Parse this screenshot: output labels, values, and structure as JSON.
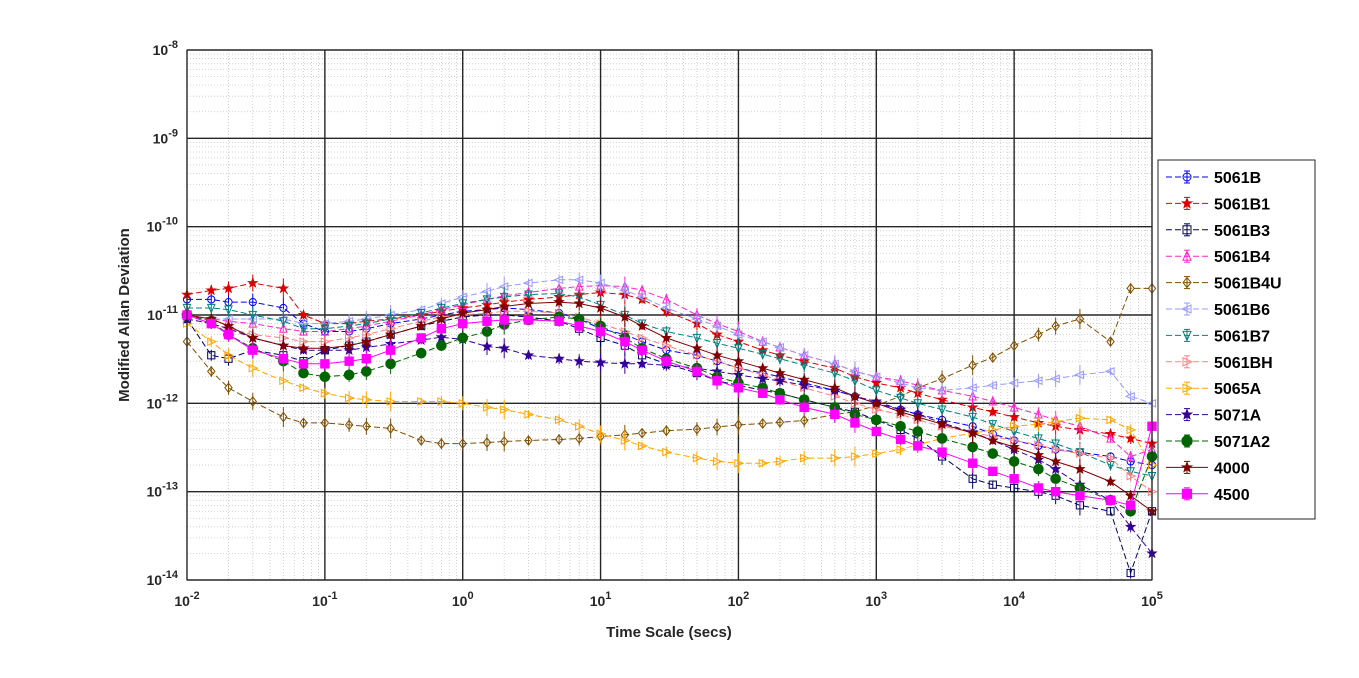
{
  "chart_data": {
    "type": "line",
    "title": "",
    "xlabel": "Time Scale (secs)",
    "ylabel": "Modified Allan Deviation",
    "x_scale": "log",
    "y_scale": "log",
    "xlim": [
      0.01,
      100000
    ],
    "ylim": [
      1e-14,
      1e-08
    ],
    "grid": true,
    "minor_grid": true,
    "legend_position": "right-outside",
    "x_ticks": [
      {
        "base": "10",
        "exp": "-2"
      },
      {
        "base": "10",
        "exp": "-1"
      },
      {
        "base": "10",
        "exp": "0"
      },
      {
        "base": "10",
        "exp": "1"
      },
      {
        "base": "10",
        "exp": "2"
      },
      {
        "base": "10",
        "exp": "3"
      },
      {
        "base": "10",
        "exp": "4"
      },
      {
        "base": "10",
        "exp": "5"
      }
    ],
    "y_ticks": [
      {
        "base": "10",
        "exp": "-14"
      },
      {
        "base": "10",
        "exp": "-13"
      },
      {
        "base": "10",
        "exp": "-12"
      },
      {
        "base": "10",
        "exp": "-11"
      },
      {
        "base": "10",
        "exp": "-10"
      },
      {
        "base": "10",
        "exp": "-9"
      },
      {
        "base": "10",
        "exp": "-8"
      }
    ],
    "x": [
      0.01,
      0.015,
      0.02,
      0.03,
      0.05,
      0.07,
      0.1,
      0.15,
      0.2,
      0.3,
      0.5,
      0.7,
      1,
      1.5,
      2,
      3,
      5,
      7,
      10,
      15,
      20,
      30,
      50,
      70,
      100,
      150,
      200,
      300,
      500,
      700,
      1000,
      1500,
      2000,
      3000,
      5000,
      7000,
      10000,
      15000,
      20000,
      30000,
      50000,
      70000,
      100000
    ],
    "series": [
      {
        "name": "5061B",
        "color": "#0000ff",
        "marker": "circle",
        "dash": "6,3",
        "values": [
          1.5e-11,
          1.5e-11,
          1.4e-11,
          1.4e-11,
          1.2e-11,
          8e-12,
          6.5e-12,
          6.5e-12,
          7e-12,
          8e-12,
          9e-12,
          1e-11,
          1.1e-11,
          1.15e-11,
          1.2e-11,
          1.15e-11,
          1.05e-11,
          9e-12,
          7e-12,
          6e-12,
          5e-12,
          4e-12,
          3.5e-12,
          3e-12,
          2.5e-12,
          2.2e-12,
          2e-12,
          1.7e-12,
          1.4e-12,
          1.2e-12,
          1e-12,
          8.5e-13,
          7.5e-13,
          6.5e-13,
          5.5e-13,
          4.5e-13,
          3.8e-13,
          3.3e-13,
          3e-13,
          2.8e-13,
          2.5e-13,
          2.2e-13,
          2e-13
        ]
      },
      {
        "name": "5061B1",
        "color": "#dd0000",
        "marker": "star",
        "dash": "6,3",
        "values": [
          1.7e-11,
          1.9e-11,
          2e-11,
          2.3e-11,
          2e-11,
          1e-11,
          8e-12,
          8e-12,
          8.5e-12,
          9e-12,
          1e-11,
          1.1e-11,
          1.2e-11,
          1.3e-11,
          1.4e-11,
          1.5e-11,
          1.6e-11,
          1.7e-11,
          1.8e-11,
          1.7e-11,
          1.5e-11,
          1.1e-11,
          8e-12,
          6e-12,
          5e-12,
          4e-12,
          3.5e-12,
          3e-12,
          2.5e-12,
          2e-12,
          1.7e-12,
          1.5e-12,
          1.3e-12,
          1.1e-12,
          9e-13,
          8e-13,
          7e-13,
          6e-13,
          5.5e-13,
          5e-13,
          4.5e-13,
          4e-13,
          3.5e-13
        ]
      },
      {
        "name": "5061B3",
        "color": "#000066",
        "marker": "square",
        "dash": "6,3",
        "values": [
          9e-12,
          3.5e-12,
          3.2e-12,
          4e-12,
          3.5e-12,
          3e-12,
          4e-12,
          4.5e-12,
          5e-12,
          6e-12,
          7.5e-12,
          8.5e-12,
          9.5e-12,
          1e-11,
          1e-11,
          9.5e-12,
          8.5e-12,
          7e-12,
          5.5e-12,
          4.5e-12,
          3.5e-12,
          2.8e-12,
          2.2e-12,
          1.8e-12,
          1.6e-12,
          1.4e-12,
          1.3e-12,
          1.1e-12,
          9e-13,
          8e-13,
          6.5e-13,
          5e-13,
          4e-13,
          2.5e-13,
          1.4e-13,
          1.2e-13,
          1.1e-13,
          1e-13,
          9e-14,
          7e-14,
          6e-14,
          1.2e-14,
          6e-14
        ]
      },
      {
        "name": "5061B4",
        "color": "#ff22cc",
        "marker": "triangle-up",
        "dash": "6,3",
        "values": [
          1e-11,
          9e-12,
          8.5e-12,
          8e-12,
          7e-12,
          6.5e-12,
          6.5e-12,
          7e-12,
          7.5e-12,
          8.5e-12,
          1e-11,
          1.15e-11,
          1.3e-11,
          1.5e-11,
          1.65e-11,
          1.8e-11,
          2e-11,
          2.1e-11,
          2.15e-11,
          2.1e-11,
          1.9e-11,
          1.5e-11,
          1e-11,
          8e-12,
          6.5e-12,
          5e-12,
          4.3e-12,
          3.5e-12,
          2.8e-12,
          2.3e-12,
          2e-12,
          1.8e-12,
          1.6e-12,
          1.4e-12,
          1.2e-12,
          1.05e-12,
          9e-13,
          7.5e-13,
          6.5e-13,
          5.5e-13,
          4e-13,
          2.5e-13,
          3e-13
        ]
      },
      {
        "name": "5061B4U",
        "color": "#7f4f00",
        "marker": "diamond",
        "dash": "6,3",
        "values": [
          5e-12,
          2.3e-12,
          1.5e-12,
          1.05e-12,
          7e-13,
          6e-13,
          6e-13,
          5.7e-13,
          5.5e-13,
          5.2e-13,
          3.8e-13,
          3.5e-13,
          3.5e-13,
          3.6e-13,
          3.7e-13,
          3.8e-13,
          3.9e-13,
          4e-13,
          4.2e-13,
          4.4e-13,
          4.6e-13,
          4.9e-13,
          5.1e-13,
          5.4e-13,
          5.7e-13,
          5.9e-13,
          6.1e-13,
          6.4e-13,
          7.5e-13,
          8e-13,
          9.5e-13,
          1.2e-12,
          1.5e-12,
          1.9e-12,
          2.7e-12,
          3.3e-12,
          4.5e-12,
          6e-12,
          7.5e-12,
          9e-12,
          5e-12,
          2e-11,
          2e-11
        ]
      },
      {
        "name": "5061B6",
        "color": "#9999ff",
        "marker": "triangle-left",
        "dash": "6,3",
        "values": [
          1e-11,
          9e-12,
          9e-12,
          9e-12,
          9e-12,
          8e-12,
          8e-12,
          8.5e-12,
          9e-12,
          1e-11,
          1.15e-11,
          1.35e-11,
          1.6e-11,
          1.85e-11,
          2.1e-11,
          2.3e-11,
          2.5e-11,
          2.5e-11,
          2.3e-11,
          1.9e-11,
          1.6e-11,
          1.2e-11,
          9e-12,
          7.5e-12,
          6e-12,
          5e-12,
          4.3e-12,
          3.5e-12,
          2.8e-12,
          2.3e-12,
          2e-12,
          1.7e-12,
          1.5e-12,
          1.4e-12,
          1.5e-12,
          1.6e-12,
          1.7e-12,
          1.8e-12,
          1.9e-12,
          2.1e-12,
          2.3e-12,
          1.2e-12,
          1e-12
        ]
      },
      {
        "name": "5061B7",
        "color": "#008080",
        "marker": "triangle-down",
        "dash": "6,3",
        "values": [
          1.2e-11,
          1.2e-11,
          1.15e-11,
          1e-11,
          8.5e-12,
          7e-12,
          7e-12,
          7.5e-12,
          8e-12,
          9e-12,
          1.05e-11,
          1.2e-11,
          1.35e-11,
          1.5e-11,
          1.6e-11,
          1.7e-11,
          1.75e-11,
          1.6e-11,
          1.3e-11,
          1e-11,
          8e-12,
          6.5e-12,
          5.5e-12,
          4.8e-12,
          4.2e-12,
          3.6e-12,
          3.2e-12,
          2.7e-12,
          2.2e-12,
          1.8e-12,
          1.4e-12,
          1.15e-12,
          1e-12,
          8.5e-13,
          7e-13,
          5.8e-13,
          4.8e-13,
          4e-13,
          3.5e-13,
          2.8e-13,
          2e-13,
          1.7e-13,
          1.5e-13
        ]
      },
      {
        "name": "5061BH",
        "color": "#ff8080",
        "marker": "triangle-right",
        "dash": "6,3",
        "values": [
          1e-11,
          8e-12,
          7e-12,
          6e-12,
          5.5e-12,
          5e-12,
          5e-12,
          5.5e-12,
          6e-12,
          7e-12,
          8.5e-12,
          9.5e-12,
          1e-11,
          1.05e-11,
          1.1e-11,
          1.1e-11,
          1.05e-11,
          9.5e-12,
          8e-12,
          6.5e-12,
          5.5e-12,
          4.5e-12,
          3.5e-12,
          3e-12,
          2.5e-12,
          2.1e-12,
          1.8e-12,
          1.5e-12,
          1.2e-12,
          1e-12,
          8.5e-13,
          7.5e-13,
          6.5e-13,
          5.5e-13,
          4.7e-13,
          4.2e-13,
          3.8e-13,
          3.4e-13,
          3e-13,
          2.7e-13,
          2.4e-13,
          1.5e-13,
          1e-13
        ]
      },
      {
        "name": "5065A",
        "color": "#ffa500",
        "marker": "triangle-right",
        "dash": "6,3",
        "values": [
          8e-12,
          5e-12,
          3.5e-12,
          2.5e-12,
          1.8e-12,
          1.5e-12,
          1.3e-12,
          1.15e-12,
          1.1e-12,
          1.05e-12,
          1.05e-12,
          1.05e-12,
          1e-12,
          9e-13,
          8.5e-13,
          7.5e-13,
          6.5e-13,
          5.5e-13,
          4.5e-13,
          3.8e-13,
          3.3e-13,
          2.8e-13,
          2.4e-13,
          2.2e-13,
          2.1e-13,
          2.1e-13,
          2.2e-13,
          2.4e-13,
          2.4e-13,
          2.5e-13,
          2.7e-13,
          3e-13,
          3.4e-13,
          4e-13,
          4.6e-13,
          5e-13,
          5.5e-13,
          5.8e-13,
          6.2e-13,
          6.8e-13,
          6.5e-13,
          5e-13,
          2e-13
        ]
      },
      {
        "name": "5071A",
        "color": "#330099",
        "marker": "star",
        "dash": "6,3",
        "values": [
          9e-12,
          8e-12,
          7e-12,
          5.5e-12,
          4.5e-12,
          4e-12,
          4e-12,
          4e-12,
          4.3e-12,
          4.7e-12,
          5.2e-12,
          5.6e-12,
          5.3e-12,
          4.4e-12,
          4.2e-12,
          3.5e-12,
          3.2e-12,
          3e-12,
          2.9e-12,
          2.8e-12,
          2.8e-12,
          2.7e-12,
          2.5e-12,
          2.3e-12,
          2.1e-12,
          1.9e-12,
          1.8e-12,
          1.6e-12,
          1.4e-12,
          1.2e-12,
          1.05e-12,
          8.5e-13,
          7.5e-13,
          6e-13,
          4.7e-13,
          3.8e-13,
          3e-13,
          2.3e-13,
          1.8e-13,
          1.2e-13,
          8e-14,
          4e-14,
          2e-14
        ]
      },
      {
        "name": "5071A2",
        "color": "#006400",
        "marker": "filled-circle",
        "dash": "6,3",
        "values": [
          1e-11,
          8.5e-12,
          6e-12,
          4.2e-12,
          3e-12,
          2.2e-12,
          2e-12,
          2.1e-12,
          2.3e-12,
          2.8e-12,
          3.7e-12,
          4.5e-12,
          5.5e-12,
          6.5e-12,
          7.8e-12,
          8.8e-12,
          9.5e-12,
          9e-12,
          7.5e-12,
          5.5e-12,
          4.2e-12,
          3.2e-12,
          2.5e-12,
          2e-12,
          1.7e-12,
          1.5e-12,
          1.3e-12,
          1.1e-12,
          9e-13,
          7.5e-13,
          6.5e-13,
          5.5e-13,
          4.8e-13,
          4e-13,
          3.2e-13,
          2.7e-13,
          2.2e-13,
          1.8e-13,
          1.4e-13,
          1.1e-13,
          8e-14,
          6e-14,
          2.5e-13
        ]
      },
      {
        "name": "4000",
        "color": "#800000",
        "marker": "star",
        "dash": "",
        "values": [
          1e-11,
          9e-12,
          7.5e-12,
          5.5e-12,
          4.5e-12,
          4.2e-12,
          4.2e-12,
          4.5e-12,
          5e-12,
          6e-12,
          7.5e-12,
          9e-12,
          1.05e-11,
          1.15e-11,
          1.25e-11,
          1.35e-11,
          1.4e-11,
          1.35e-11,
          1.2e-11,
          9.5e-12,
          7.5e-12,
          5.5e-12,
          4.2e-12,
          3.5e-12,
          3e-12,
          2.5e-12,
          2.2e-12,
          1.85e-12,
          1.5e-12,
          1.2e-12,
          1e-12,
          8e-13,
          7e-13,
          5.8e-13,
          4.6e-13,
          3.8e-13,
          3.2e-13,
          2.6e-13,
          2.2e-13,
          1.8e-13,
          1.3e-13,
          9e-14,
          6e-14
        ]
      },
      {
        "name": "4500",
        "color": "#ff00ff",
        "marker": "filled-square",
        "dash": "",
        "values": [
          1e-11,
          8e-12,
          6e-12,
          4e-12,
          3.2e-12,
          2.8e-12,
          2.8e-12,
          3e-12,
          3.2e-12,
          4e-12,
          5.5e-12,
          7e-12,
          8e-12,
          8.5e-12,
          8.8e-12,
          8.8e-12,
          8.5e-12,
          7.5e-12,
          6.5e-12,
          5e-12,
          4e-12,
          3e-12,
          2.3e-12,
          1.8e-12,
          1.5e-12,
          1.3e-12,
          1.1e-12,
          9e-13,
          7.5e-13,
          6e-13,
          4.8e-13,
          3.9e-13,
          3.3e-13,
          2.8e-13,
          2.1e-13,
          1.7e-13,
          1.4e-13,
          1.1e-13,
          1e-13,
          9e-14,
          8e-14,
          7e-14,
          5.5e-13
        ]
      }
    ]
  }
}
